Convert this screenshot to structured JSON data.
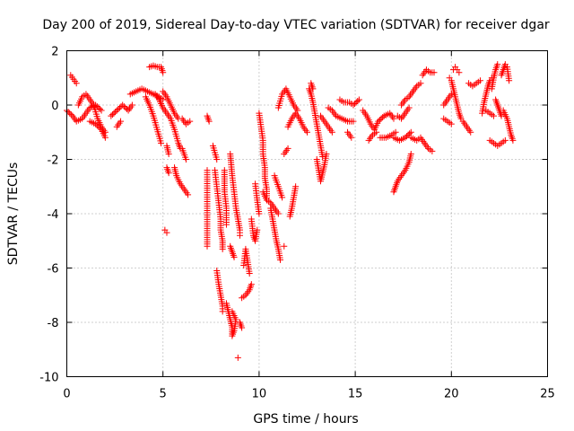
{
  "chart_data": {
    "type": "scatter",
    "title": "Day 200 of 2019, Sidereal Day-to-day VTEC variation (SDTVAR) for receiver dgar",
    "xlabel": "GPS time / hours",
    "ylabel": "SDTVAR / TECUs",
    "xlim": [
      0,
      25
    ],
    "ylim": [
      -10,
      2
    ],
    "xticks": [
      0,
      5,
      10,
      15,
      20,
      25
    ],
    "yticks": [
      -10,
      -8,
      -6,
      -4,
      -2,
      0,
      2
    ],
    "xtick_labels": [
      "0",
      "5",
      "10",
      "15",
      "20",
      "25"
    ],
    "ytick_labels": [
      "-10",
      "-8",
      "-6",
      "-4",
      "-2",
      "0",
      "2"
    ],
    "grid": true,
    "marker": "plus",
    "color": "#ff0000",
    "segments": [
      [
        [
          0.0,
          -0.2
        ],
        [
          0.3,
          -0.4
        ],
        [
          0.5,
          -0.6
        ],
        [
          0.8,
          -0.5
        ],
        [
          1.0,
          -0.3
        ],
        [
          1.2,
          -0.1
        ],
        [
          1.5,
          0.0
        ],
        [
          1.8,
          -0.2
        ]
      ],
      [
        [
          0.2,
          1.1
        ],
        [
          0.5,
          0.8
        ]
      ],
      [
        [
          0.6,
          0.0
        ],
        [
          0.8,
          0.3
        ],
        [
          1.0,
          0.4
        ],
        [
          1.2,
          0.2
        ],
        [
          1.4,
          0.0
        ],
        [
          1.6,
          -0.5
        ],
        [
          1.8,
          -0.8
        ],
        [
          2.0,
          -1.0
        ]
      ],
      [
        [
          1.2,
          -0.6
        ],
        [
          1.5,
          -0.7
        ],
        [
          1.8,
          -0.9
        ],
        [
          2.0,
          -1.2
        ]
      ],
      [
        [
          2.3,
          -0.4
        ],
        [
          2.6,
          -0.2
        ],
        [
          2.9,
          0.0
        ],
        [
          3.2,
          -0.2
        ],
        [
          3.4,
          0.0
        ]
      ],
      [
        [
          2.6,
          -0.8
        ],
        [
          2.8,
          -0.6
        ]
      ],
      [
        [
          3.3,
          0.4
        ],
        [
          3.6,
          0.5
        ],
        [
          3.9,
          0.6
        ],
        [
          4.2,
          0.5
        ],
        [
          4.5,
          0.4
        ],
        [
          4.8,
          0.3
        ],
        [
          5.0,
          0.2
        ]
      ],
      [
        [
          4.1,
          0.3
        ],
        [
          4.3,
          0.0
        ],
        [
          4.5,
          -0.4
        ],
        [
          4.7,
          -0.9
        ],
        [
          4.9,
          -1.4
        ]
      ],
      [
        [
          4.3,
          1.4
        ],
        [
          4.5,
          1.45
        ],
        [
          4.7,
          1.4
        ],
        [
          4.9,
          1.4
        ],
        [
          5.0,
          1.2
        ]
      ],
      [
        [
          4.6,
          0.4
        ],
        [
          4.8,
          0.2
        ],
        [
          5.0,
          -0.1
        ],
        [
          5.2,
          -0.3
        ],
        [
          5.4,
          -0.5
        ],
        [
          5.6,
          -0.9
        ],
        [
          5.8,
          -1.4
        ],
        [
          5.9,
          -1.6
        ]
      ],
      [
        [
          5.0,
          0.5
        ],
        [
          5.2,
          0.3
        ],
        [
          5.4,
          0.0
        ],
        [
          5.6,
          -0.3
        ],
        [
          5.8,
          -0.5
        ]
      ],
      [
        [
          5.2,
          -1.5
        ],
        [
          5.3,
          -1.8
        ]
      ],
      [
        [
          5.6,
          -2.3
        ],
        [
          5.7,
          -2.6
        ],
        [
          5.9,
          -2.9
        ],
        [
          6.1,
          -3.1
        ],
        [
          6.3,
          -3.3
        ]
      ],
      [
        [
          6.0,
          -1.6
        ],
        [
          6.2,
          -2.0
        ]
      ],
      [
        [
          6.0,
          -0.5
        ],
        [
          6.2,
          -0.7
        ],
        [
          6.4,
          -0.6
        ]
      ],
      [
        [
          5.2,
          -2.3
        ],
        [
          5.3,
          -2.5
        ]
      ],
      [
        [
          5.1,
          -4.6
        ],
        [
          5.2,
          -4.7
        ]
      ],
      [
        [
          7.3,
          -0.4
        ],
        [
          7.4,
          -0.6
        ]
      ],
      [
        [
          7.3,
          -2.4
        ],
        [
          7.3,
          -5.2
        ]
      ],
      [
        [
          7.6,
          -1.5
        ],
        [
          7.8,
          -2.0
        ]
      ],
      [
        [
          7.7,
          -2.4
        ],
        [
          7.8,
          -3.0
        ],
        [
          7.9,
          -3.6
        ],
        [
          8.0,
          -4.2
        ],
        [
          8.0,
          -4.6
        ],
        [
          8.1,
          -5.0
        ],
        [
          8.1,
          -5.3
        ]
      ],
      [
        [
          7.8,
          -6.1
        ],
        [
          7.9,
          -6.6
        ],
        [
          8.0,
          -7.0
        ],
        [
          8.1,
          -7.4
        ],
        [
          8.1,
          -7.6
        ]
      ],
      [
        [
          8.2,
          -2.4
        ],
        [
          8.2,
          -3.2
        ],
        [
          8.3,
          -3.8
        ],
        [
          8.3,
          -4.4
        ]
      ],
      [
        [
          8.5,
          -1.8
        ],
        [
          8.6,
          -2.6
        ],
        [
          8.7,
          -3.2
        ],
        [
          8.8,
          -3.8
        ],
        [
          8.9,
          -4.2
        ],
        [
          9.0,
          -4.6
        ],
        [
          9.0,
          -4.8
        ]
      ],
      [
        [
          8.5,
          -5.2
        ],
        [
          8.6,
          -5.4
        ],
        [
          8.7,
          -5.6
        ]
      ],
      [
        [
          8.3,
          -7.3
        ],
        [
          8.4,
          -7.6
        ],
        [
          8.5,
          -7.9
        ],
        [
          8.6,
          -8.2
        ],
        [
          8.6,
          -8.5
        ],
        [
          8.7,
          -8.3
        ],
        [
          8.8,
          -7.9
        ],
        [
          8.6,
          -7.6
        ]
      ],
      [
        [
          8.9,
          -9.3
        ]
      ],
      [
        [
          9.0,
          -8.0
        ],
        [
          9.1,
          -8.2
        ]
      ],
      [
        [
          9.1,
          -7.1
        ],
        [
          9.3,
          -7.0
        ],
        [
          9.5,
          -6.8
        ],
        [
          9.6,
          -6.6
        ]
      ],
      [
        [
          9.2,
          -5.9
        ],
        [
          9.3,
          -5.3
        ],
        [
          9.5,
          -6.2
        ]
      ],
      [
        [
          9.6,
          -4.2
        ],
        [
          9.7,
          -4.8
        ],
        [
          9.8,
          -5.0
        ],
        [
          9.9,
          -4.6
        ]
      ],
      [
        [
          9.8,
          -2.9
        ],
        [
          9.9,
          -3.5
        ],
        [
          10.0,
          -4.0
        ]
      ],
      [
        [
          10.0,
          -0.3
        ],
        [
          10.1,
          -0.8
        ],
        [
          10.2,
          -1.3
        ],
        [
          10.2,
          -1.8
        ],
        [
          10.3,
          -2.3
        ],
        [
          10.3,
          -2.7
        ],
        [
          10.4,
          -3.1
        ],
        [
          10.4,
          -3.5
        ]
      ],
      [
        [
          10.2,
          -3.2
        ],
        [
          10.4,
          -3.5
        ],
        [
          10.6,
          -3.6
        ],
        [
          10.8,
          -3.8
        ],
        [
          11.0,
          -4.0
        ]
      ],
      [
        [
          10.6,
          -3.8
        ],
        [
          10.7,
          -4.2
        ],
        [
          10.8,
          -4.6
        ],
        [
          10.9,
          -5.0
        ],
        [
          11.0,
          -5.3
        ],
        [
          11.1,
          -5.7
        ]
      ],
      [
        [
          10.8,
          -2.6
        ],
        [
          11.0,
          -3.0
        ],
        [
          11.2,
          -3.4
        ]
      ],
      [
        [
          11.3,
          -5.2
        ]
      ],
      [
        [
          11.3,
          -1.8
        ],
        [
          11.5,
          -1.6
        ]
      ],
      [
        [
          11.6,
          -4.1
        ],
        [
          11.7,
          -3.8
        ],
        [
          11.8,
          -3.4
        ],
        [
          11.9,
          -3.0
        ]
      ],
      [
        [
          11.0,
          -0.1
        ],
        [
          11.2,
          0.4
        ],
        [
          11.4,
          0.6
        ],
        [
          11.6,
          0.3
        ],
        [
          11.8,
          0.0
        ],
        [
          12.0,
          -0.2
        ]
      ],
      [
        [
          11.5,
          -0.8
        ],
        [
          11.7,
          -0.5
        ],
        [
          11.9,
          -0.3
        ],
        [
          12.1,
          -0.5
        ],
        [
          12.3,
          -0.8
        ],
        [
          12.5,
          -1.0
        ]
      ],
      [
        [
          12.6,
          0.6
        ],
        [
          12.7,
          0.4
        ],
        [
          12.8,
          0.1
        ],
        [
          12.9,
          -0.3
        ],
        [
          13.0,
          -0.7
        ],
        [
          13.1,
          -1.1
        ],
        [
          13.2,
          -1.5
        ],
        [
          13.3,
          -1.9
        ]
      ],
      [
        [
          12.7,
          0.8
        ],
        [
          12.8,
          0.6
        ]
      ],
      [
        [
          13.0,
          -2.0
        ],
        [
          13.1,
          -2.4
        ],
        [
          13.2,
          -2.8
        ],
        [
          13.3,
          -2.5
        ],
        [
          13.4,
          -2.2
        ],
        [
          13.5,
          -1.8
        ]
      ],
      [
        [
          13.2,
          -0.4
        ],
        [
          13.4,
          -0.6
        ],
        [
          13.6,
          -0.8
        ],
        [
          13.8,
          -1.0
        ]
      ],
      [
        [
          13.6,
          -0.1
        ],
        [
          13.8,
          -0.2
        ],
        [
          14.0,
          -0.4
        ],
        [
          14.3,
          -0.5
        ],
        [
          14.6,
          -0.6
        ],
        [
          14.9,
          -0.6
        ]
      ],
      [
        [
          14.2,
          0.2
        ],
        [
          14.4,
          0.1
        ],
        [
          14.7,
          0.1
        ],
        [
          14.9,
          0.0
        ],
        [
          15.2,
          0.2
        ]
      ],
      [
        [
          14.6,
          -1.0
        ],
        [
          14.8,
          -1.2
        ]
      ],
      [
        [
          15.4,
          -0.2
        ],
        [
          15.6,
          -0.4
        ],
        [
          15.8,
          -0.7
        ],
        [
          16.0,
          -0.9
        ],
        [
          16.2,
          -0.6
        ],
        [
          16.5,
          -0.4
        ],
        [
          16.8,
          -0.3
        ],
        [
          17.0,
          -0.5
        ]
      ],
      [
        [
          15.7,
          -1.3
        ],
        [
          15.9,
          -1.1
        ],
        [
          16.1,
          -1.0
        ]
      ],
      [
        [
          16.3,
          -1.2
        ],
        [
          16.6,
          -1.2
        ],
        [
          16.9,
          -1.1
        ],
        [
          17.1,
          -1.0
        ]
      ],
      [
        [
          17.0,
          -3.2
        ],
        [
          17.1,
          -3.0
        ],
        [
          17.2,
          -2.8
        ],
        [
          17.4,
          -2.6
        ],
        [
          17.6,
          -2.4
        ],
        [
          17.8,
          -2.1
        ],
        [
          17.9,
          -1.8
        ]
      ],
      [
        [
          17.0,
          -1.2
        ],
        [
          17.3,
          -1.3
        ],
        [
          17.6,
          -1.2
        ],
        [
          17.9,
          -1.0
        ]
      ],
      [
        [
          17.2,
          -0.4
        ],
        [
          17.4,
          -0.5
        ],
        [
          17.6,
          -0.3
        ],
        [
          17.8,
          -0.1
        ]
      ],
      [
        [
          17.4,
          0.0
        ],
        [
          17.6,
          0.2
        ],
        [
          17.8,
          0.3
        ],
        [
          18.0,
          0.5
        ],
        [
          18.2,
          0.7
        ],
        [
          18.4,
          0.8
        ]
      ],
      [
        [
          17.9,
          -1.2
        ],
        [
          18.2,
          -1.3
        ],
        [
          18.4,
          -1.2
        ],
        [
          18.6,
          -1.4
        ],
        [
          18.8,
          -1.6
        ],
        [
          19.0,
          -1.7
        ]
      ],
      [
        [
          18.5,
          1.1
        ],
        [
          18.7,
          1.3
        ],
        [
          18.9,
          1.2
        ],
        [
          19.1,
          1.2
        ]
      ],
      [
        [
          19.6,
          0.0
        ],
        [
          19.8,
          0.2
        ],
        [
          20.0,
          0.4
        ]
      ],
      [
        [
          19.6,
          -0.5
        ],
        [
          19.8,
          -0.6
        ],
        [
          20.0,
          -0.7
        ]
      ],
      [
        [
          19.9,
          1.0
        ],
        [
          20.0,
          0.9
        ],
        [
          20.1,
          0.6
        ],
        [
          20.2,
          0.3
        ],
        [
          20.3,
          0.0
        ],
        [
          20.4,
          -0.3
        ],
        [
          20.5,
          -0.5
        ]
      ],
      [
        [
          20.1,
          1.3
        ],
        [
          20.2,
          1.4
        ],
        [
          20.3,
          1.3
        ],
        [
          20.4,
          1.2
        ]
      ],
      [
        [
          20.6,
          -0.6
        ],
        [
          20.8,
          -0.8
        ],
        [
          21.0,
          -1.0
        ]
      ],
      [
        [
          20.9,
          0.8
        ],
        [
          21.1,
          0.7
        ],
        [
          21.3,
          0.8
        ],
        [
          21.5,
          0.9
        ]
      ],
      [
        [
          21.6,
          -0.3
        ],
        [
          21.7,
          0.1
        ],
        [
          21.8,
          0.4
        ],
        [
          21.9,
          0.7
        ],
        [
          22.0,
          0.9
        ],
        [
          22.1,
          1.0
        ]
      ],
      [
        [
          21.8,
          -0.2
        ],
        [
          22.0,
          -0.3
        ],
        [
          22.2,
          -0.4
        ]
      ],
      [
        [
          22.0,
          -1.3
        ],
        [
          22.2,
          -1.4
        ],
        [
          22.4,
          -1.5
        ],
        [
          22.6,
          -1.4
        ],
        [
          22.8,
          -1.3
        ]
      ],
      [
        [
          22.1,
          0.6
        ],
        [
          22.2,
          1.0
        ],
        [
          22.3,
          1.3
        ],
        [
          22.4,
          1.5
        ]
      ],
      [
        [
          22.3,
          0.2
        ],
        [
          22.4,
          0.0
        ],
        [
          22.5,
          -0.2
        ],
        [
          22.6,
          -0.4
        ]
      ],
      [
        [
          22.6,
          1.1
        ],
        [
          22.7,
          1.3
        ],
        [
          22.8,
          1.5
        ],
        [
          22.9,
          1.4
        ],
        [
          23.0,
          0.9
        ]
      ],
      [
        [
          22.7,
          -0.2
        ],
        [
          22.9,
          -0.5
        ],
        [
          23.0,
          -0.8
        ],
        [
          23.1,
          -1.1
        ],
        [
          23.2,
          -1.3
        ]
      ]
    ]
  }
}
